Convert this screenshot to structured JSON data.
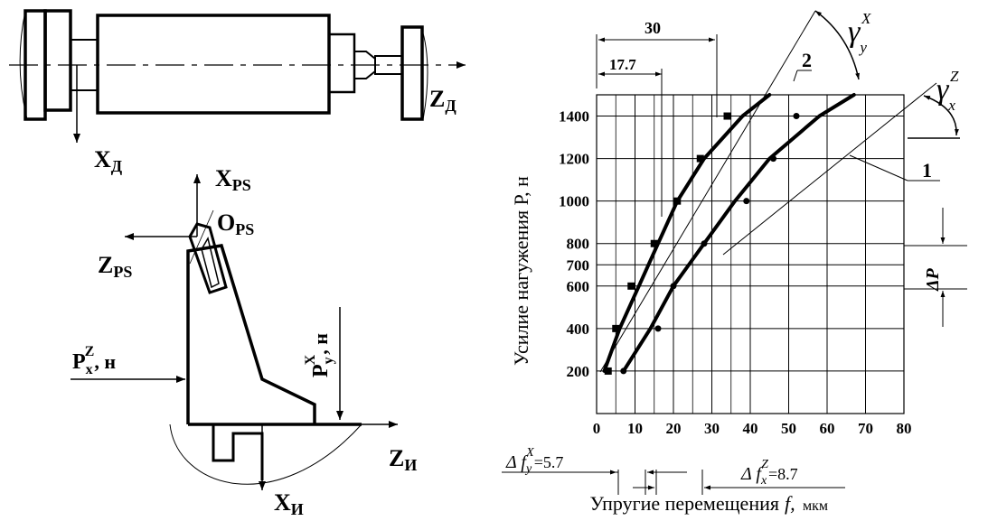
{
  "diagram": {
    "spindle_axis_z": "Z",
    "spindle_axis_z_sub": "Д",
    "spindle_axis_x": "X",
    "spindle_axis_x_sub": "Д",
    "tool_axis_x": "X",
    "tool_axis_x_sub": "PS",
    "tool_axis_z": "Z",
    "tool_axis_z_sub": "PS",
    "tool_origin": "O",
    "tool_origin_sub": "PS",
    "tool_base_axis_z": "Z",
    "tool_base_axis_z_sub": "И",
    "tool_base_axis_x": "X",
    "tool_base_axis_x_sub": "И",
    "force_pxz_main": "P",
    "force_pxz_sub": "x",
    "force_pxz_sup": "Z",
    "force_pxz_unit": ", н",
    "force_pyx_main": "P",
    "force_pyx_sub": "y",
    "force_pyx_sup": "X",
    "force_pyx_unit": ", н"
  },
  "chart_data": {
    "type": "line",
    "ylabel": "Усилие нагужения Р, н",
    "xlabel": "Упругие перемещения",
    "xlabel_sym": "f,",
    "xlabel_unit": "мкм",
    "x_ticks": [
      "0",
      "10",
      "20",
      "30",
      "40",
      "50",
      "60",
      "70",
      "80"
    ],
    "y_ticks": [
      "200",
      "400",
      "600",
      "700",
      "800",
      "1000",
      "1200",
      "1400"
    ],
    "xlim": [
      0,
      80
    ],
    "ylim": [
      0,
      1500
    ],
    "series": [
      {
        "name": "2",
        "marker": "square",
        "points": [
          [
            3,
            200
          ],
          [
            5,
            400
          ],
          [
            9,
            600
          ],
          [
            15,
            800
          ],
          [
            21,
            1000
          ],
          [
            27,
            1200
          ],
          [
            34,
            1400
          ]
        ],
        "curve": [
          [
            2,
            200
          ],
          [
            6,
            400
          ],
          [
            11,
            600
          ],
          [
            16,
            800
          ],
          [
            21,
            1000
          ],
          [
            28,
            1200
          ],
          [
            38,
            1400
          ],
          [
            45,
            1500
          ]
        ]
      },
      {
        "name": "1",
        "marker": "dot",
        "points": [
          [
            7,
            200
          ],
          [
            16,
            400
          ],
          [
            20,
            600
          ],
          [
            28,
            800
          ],
          [
            39,
            1000
          ],
          [
            46,
            1200
          ],
          [
            52,
            1400
          ]
        ],
        "curve": [
          [
            7,
            200
          ],
          [
            14,
            400
          ],
          [
            20,
            600
          ],
          [
            28,
            800
          ],
          [
            36,
            1000
          ],
          [
            45,
            1200
          ],
          [
            58,
            1400
          ],
          [
            67,
            1500
          ]
        ]
      }
    ],
    "annotations": {
      "dim_30": "30",
      "dim_177": "17.7",
      "gamma_y": "γ",
      "gamma_y_sub": "y",
      "gamma_y_sup": "X",
      "gamma_x": "γ",
      "gamma_x_sub": "x",
      "gamma_x_sup": "Z",
      "delta_p": "ΔP",
      "delta_fy": "Δ f",
      "delta_fy_sub": "y",
      "delta_fy_sup": "X",
      "delta_fy_val": "=5.7",
      "delta_fx": "Δ f",
      "delta_fx_sub": "x",
      "delta_fx_sup": "Z",
      "delta_fx_val": "=8.7",
      "curve1_label": "1",
      "curve2_label": "2"
    }
  }
}
